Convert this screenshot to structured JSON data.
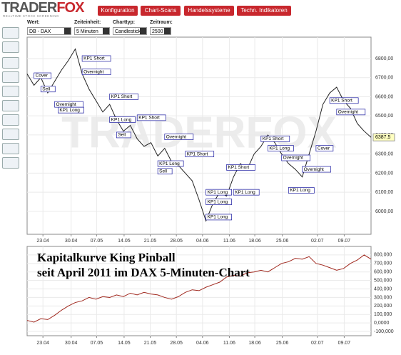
{
  "header": {
    "logo_main": "TRADER",
    "logo_accent": "FOX",
    "tagline": "REALTIME STOCK SCREENING",
    "buttons": [
      "Konfiguration",
      "Chart-Scans",
      "Handelssysteme",
      "Techn. Indikatoren"
    ]
  },
  "controls": [
    {
      "label": "Wert:",
      "value": "DB - DAX"
    },
    {
      "label": "Zeiteinheit:",
      "value": "5 Minuten"
    },
    {
      "label": "Charttyp:",
      "value": "Candlestick"
    },
    {
      "label": "Zeitraum:",
      "value": "2500"
    }
  ],
  "chart_data": [
    {
      "type": "line",
      "watermark": "TRADERFOX",
      "color": "#222222",
      "grid": true,
      "xlim": [
        0,
        50
      ],
      "ylim": [
        5880,
        6912
      ],
      "xticks": [
        {
          "value": 2.3,
          "label": "23.04"
        },
        {
          "value": 6.4,
          "label": "30.04"
        },
        {
          "value": 10.1,
          "label": "07.05"
        },
        {
          "value": 14.1,
          "label": "14.05"
        },
        {
          "value": 17.9,
          "label": "21.05"
        },
        {
          "value": 21.7,
          "label": "28.05"
        },
        {
          "value": 25.5,
          "label": "04.06"
        },
        {
          "value": 29.4,
          "label": "11.06"
        },
        {
          "value": 33.1,
          "label": "18.06"
        },
        {
          "value": 37.1,
          "label": "25.06"
        },
        {
          "value": 42.2,
          "label": "02.07"
        },
        {
          "value": 46.1,
          "label": "09.07"
        }
      ],
      "yticks": [
        {
          "value": 6000,
          "label": "6000,00"
        },
        {
          "value": 6100,
          "label": "6100,00"
        },
        {
          "value": 6200,
          "label": "6200,00"
        },
        {
          "value": 6300,
          "label": "6300,00"
        },
        {
          "value": 6400,
          "label": "6400,00"
        },
        {
          "value": 6500,
          "label": "6500,00"
        },
        {
          "value": 6600,
          "label": "6600,00"
        },
        {
          "value": 6700,
          "label": "6700,00"
        },
        {
          "value": 6800,
          "label": "6800,00"
        }
      ],
      "series": [
        {
          "name": "DB - DAX",
          "color": "#222222",
          "values": [
            6720,
            6660,
            6700,
            6620,
            6680,
            6740,
            6790,
            6850,
            6720,
            6640,
            6580,
            6520,
            6560,
            6480,
            6420,
            6450,
            6380,
            6340,
            6360,
            6290,
            6330,
            6260,
            6240,
            6200,
            6160,
            6060,
            5950,
            6040,
            6100,
            6080,
            6180,
            6250,
            6220,
            6300,
            6340,
            6400,
            6360,
            6300,
            6250,
            6220,
            6180,
            6300,
            6420,
            6560,
            6620,
            6650,
            6580,
            6540,
            6460,
            6420,
            6387.5
          ]
        }
      ],
      "last_label": "6387,5",
      "annotations": [
        {
          "text": "Cover",
          "x": 1,
          "y": 6710
        },
        {
          "text": "Sell",
          "x": 2,
          "y": 6640
        },
        {
          "text": "Overnight",
          "x": 4,
          "y": 6560
        },
        {
          "text": "KP1 Long",
          "x": 4.5,
          "y": 6530
        },
        {
          "text": "KP1 Short",
          "x": 8,
          "y": 6800
        },
        {
          "text": "Overnight",
          "x": 8,
          "y": 6730
        },
        {
          "text": "KP1 Short",
          "x": 12,
          "y": 6600
        },
        {
          "text": "KP1 Long",
          "x": 12,
          "y": 6480
        },
        {
          "text": "Sell",
          "x": 13,
          "y": 6400
        },
        {
          "text": "KP1 Short",
          "x": 16,
          "y": 6490
        },
        {
          "text": "Overnight",
          "x": 20,
          "y": 6390
        },
        {
          "text": "KP1 Long",
          "x": 19,
          "y": 6250
        },
        {
          "text": "Sell",
          "x": 19,
          "y": 6210
        },
        {
          "text": "KP1 Short",
          "x": 23,
          "y": 6300
        },
        {
          "text": "KP1 Long",
          "x": 26,
          "y": 6100
        },
        {
          "text": "KP1 Long",
          "x": 26,
          "y": 6050
        },
        {
          "text": "KP1 Long",
          "x": 26,
          "y": 5970
        },
        {
          "text": "KP1 Short",
          "x": 29,
          "y": 6230
        },
        {
          "text": "KP1 Long",
          "x": 30,
          "y": 6100
        },
        {
          "text": "KP1 Short",
          "x": 34,
          "y": 6380
        },
        {
          "text": "KP1 Long",
          "x": 35,
          "y": 6330
        },
        {
          "text": "Overnight",
          "x": 37,
          "y": 6280
        },
        {
          "text": "KP1 Long",
          "x": 38,
          "y": 6110
        },
        {
          "text": "Overnight",
          "x": 40,
          "y": 6220
        },
        {
          "text": "KP1 Short",
          "x": 44,
          "y": 6580
        },
        {
          "text": "Overnight",
          "x": 45,
          "y": 6520
        },
        {
          "text": "Cover",
          "x": 42,
          "y": 6330
        }
      ]
    },
    {
      "type": "line",
      "title": "Kapitalkurve King Pinball",
      "subtitle": "seit April 2011 im DAX 5-Minuten-Chart",
      "color": "#a0281e",
      "grid": true,
      "xlim": [
        0,
        50
      ],
      "ylim": [
        -150000,
        900000
      ],
      "xticks": [
        {
          "value": 2.3,
          "label": "23.04"
        },
        {
          "value": 6.4,
          "label": "30.04"
        },
        {
          "value": 10.1,
          "label": "07.05"
        },
        {
          "value": 14.1,
          "label": "14.05"
        },
        {
          "value": 17.9,
          "label": "21.05"
        },
        {
          "value": 21.7,
          "label": "28.05"
        },
        {
          "value": 25.5,
          "label": "04.06"
        },
        {
          "value": 29.4,
          "label": "11.06"
        },
        {
          "value": 33.1,
          "label": "18.06"
        },
        {
          "value": 37.1,
          "label": "25.06"
        },
        {
          "value": 42.2,
          "label": "02.07"
        },
        {
          "value": 46.1,
          "label": "09.07"
        }
      ],
      "yticks": [
        {
          "value": -100000,
          "label": "-100,000"
        },
        {
          "value": 0,
          "label": "0,0000"
        },
        {
          "value": 100000,
          "label": "100,000"
        },
        {
          "value": 200000,
          "label": "200,000"
        },
        {
          "value": 300000,
          "label": "300,000"
        },
        {
          "value": 400000,
          "label": "400,000"
        },
        {
          "value": 500000,
          "label": "500,000"
        },
        {
          "value": 600000,
          "label": "600,000"
        },
        {
          "value": 700000,
          "label": "700,000"
        },
        {
          "value": 800000,
          "label": "800,000"
        }
      ],
      "series": [
        {
          "name": "Kapitalkurve",
          "color": "#a0281e",
          "values": [
            30000,
            10000,
            50000,
            40000,
            90000,
            150000,
            200000,
            240000,
            260000,
            300000,
            280000,
            310000,
            300000,
            330000,
            310000,
            350000,
            330000,
            360000,
            340000,
            330000,
            300000,
            280000,
            310000,
            360000,
            390000,
            380000,
            420000,
            450000,
            480000,
            540000,
            560000,
            550000,
            590000,
            600000,
            620000,
            600000,
            650000,
            700000,
            720000,
            760000,
            750000,
            780000,
            700000,
            680000,
            650000,
            620000,
            640000,
            700000,
            740000,
            800000,
            750000
          ]
        }
      ]
    }
  ]
}
